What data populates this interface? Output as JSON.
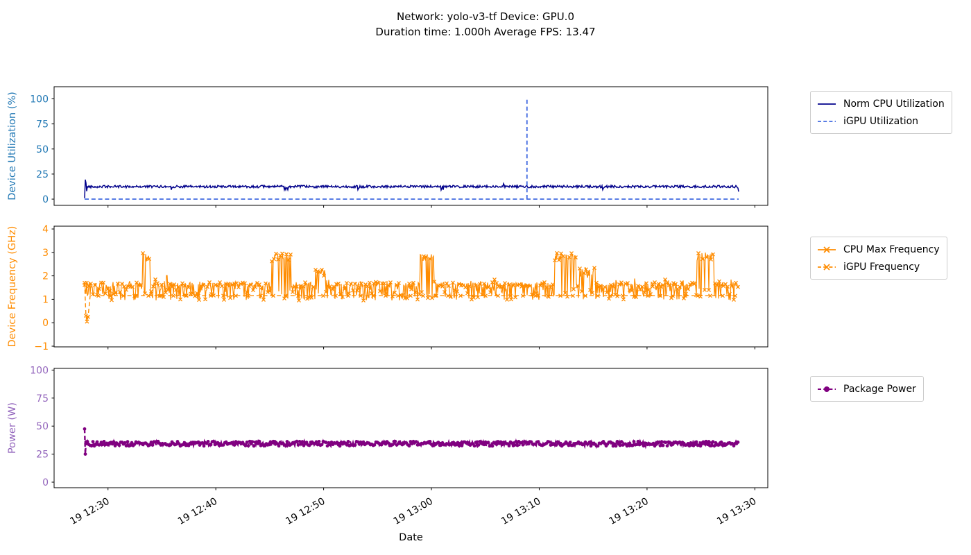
{
  "title": {
    "line1": "Network: yolo-v3-tf Device: GPU.0",
    "line2": "Duration time: 1.000h Average FPS: 13.47"
  },
  "xlabel": "Date",
  "x_axis": {
    "lim": [
      0,
      66.2
    ],
    "unit": "minutes since 19 12:25",
    "data_start": 2.83,
    "data_end": 63.5,
    "ticks": [
      {
        "pos": 5,
        "label": "19 12:30"
      },
      {
        "pos": 15,
        "label": "19 12:40"
      },
      {
        "pos": 25,
        "label": "19 12:50"
      },
      {
        "pos": 35,
        "label": "19 13:00"
      },
      {
        "pos": 45,
        "label": "19 13:10"
      },
      {
        "pos": 55,
        "label": "19 13:20"
      },
      {
        "pos": 65,
        "label": "19 13:30"
      }
    ]
  },
  "chart_data": [
    {
      "type": "line",
      "ylabel": "Device Utilization (%)",
      "axis_color": "#1f77b4",
      "ylim": [
        -6.2,
        112.1
      ],
      "yticks": [
        0,
        25,
        50,
        75,
        100
      ],
      "series": [
        {
          "name": "Norm CPU Utilization",
          "color": "#00008b",
          "line_style": "solid",
          "marker": "none",
          "baseline": 12.5,
          "noise": 1.2,
          "dips": {
            "prob": 0.006,
            "value": 9.3
          },
          "start_sequence": [
            1,
            19.5,
            16,
            8,
            12.5
          ],
          "end_sequence": [
            11,
            7.5
          ],
          "events": [
            {
              "t": 28.2,
              "value": 9.3
            },
            {
              "t": 35.9,
              "value": 9.0
            },
            {
              "t": 41.7,
              "value": 15.5
            },
            {
              "t": 50.9,
              "value": 9.4
            }
          ]
        },
        {
          "name": "iGPU Utilization",
          "color": "#4169e1",
          "line_style": "dashed",
          "marker": "none",
          "baseline": 0,
          "noise": 0,
          "events": [
            {
              "t": 43.86,
              "value": 100
            }
          ]
        }
      ]
    },
    {
      "type": "line",
      "ylabel": "Device Frequency (GHz)",
      "axis_color": "#ff8c00",
      "ylim": [
        -1.03,
        4.12
      ],
      "yticks": [
        -1,
        0,
        1,
        2,
        3,
        4
      ],
      "series": [
        {
          "name": "CPU Max Frequency",
          "color": "#ff8c00",
          "line_style": "solid",
          "marker": "x",
          "band": {
            "top_low": 1.5,
            "top_high": 1.73,
            "low": 0.95,
            "high": 1.45,
            "top_fraction": 0.6
          },
          "stray_high": 1.85,
          "clusters": [
            {
              "t0": 8.2,
              "t1": 8.9,
              "low": 2.6,
              "high": 3.0
            },
            {
              "t0": 10.3,
              "t1": 10.5,
              "low": 1.95,
              "high": 2.05
            },
            {
              "t0": 20.1,
              "t1": 22.0,
              "low": 2.6,
              "high": 3.0
            },
            {
              "t0": 24.2,
              "t1": 25.2,
              "low": 2.0,
              "high": 2.3
            },
            {
              "t0": 33.9,
              "t1": 35.2,
              "low": 2.6,
              "high": 3.0
            },
            {
              "t0": 46.4,
              "t1": 48.4,
              "low": 2.6,
              "high": 3.0
            },
            {
              "t0": 48.7,
              "t1": 50.3,
              "low": 1.9,
              "high": 2.4
            },
            {
              "t0": 53.7,
              "t1": 53.9,
              "low": 1.85,
              "high": 1.95
            },
            {
              "t0": 59.6,
              "t1": 61.2,
              "low": 2.6,
              "high": 3.0
            }
          ]
        },
        {
          "name": "iGPU Frequency",
          "color": "#ff8c00",
          "line_style": "dashed",
          "marker": "x",
          "start_sequence_points": [
            {
              "t": 2.83,
              "value": 1.7
            },
            {
              "t": 2.95,
              "value": 0.3
            },
            {
              "t": 3.05,
              "value": 0.05
            },
            {
              "t": 3.15,
              "value": 0.25
            }
          ],
          "steady": 1.15
        }
      ]
    },
    {
      "type": "line",
      "ylabel": "Power (W)",
      "axis_color": "#9467bd",
      "ylim": [
        -4.95,
        101.5
      ],
      "yticks": [
        0,
        25,
        50,
        75,
        100
      ],
      "series": [
        {
          "name": "Package Power",
          "color": "#800080",
          "line_style": "dashed",
          "marker": "o",
          "baseline": 34.3,
          "noise": 2.1,
          "start_sequence": [
            47.5,
            25,
            36
          ],
          "events": [
            {
              "t": 19,
              "value": 38.3
            }
          ]
        }
      ]
    }
  ]
}
